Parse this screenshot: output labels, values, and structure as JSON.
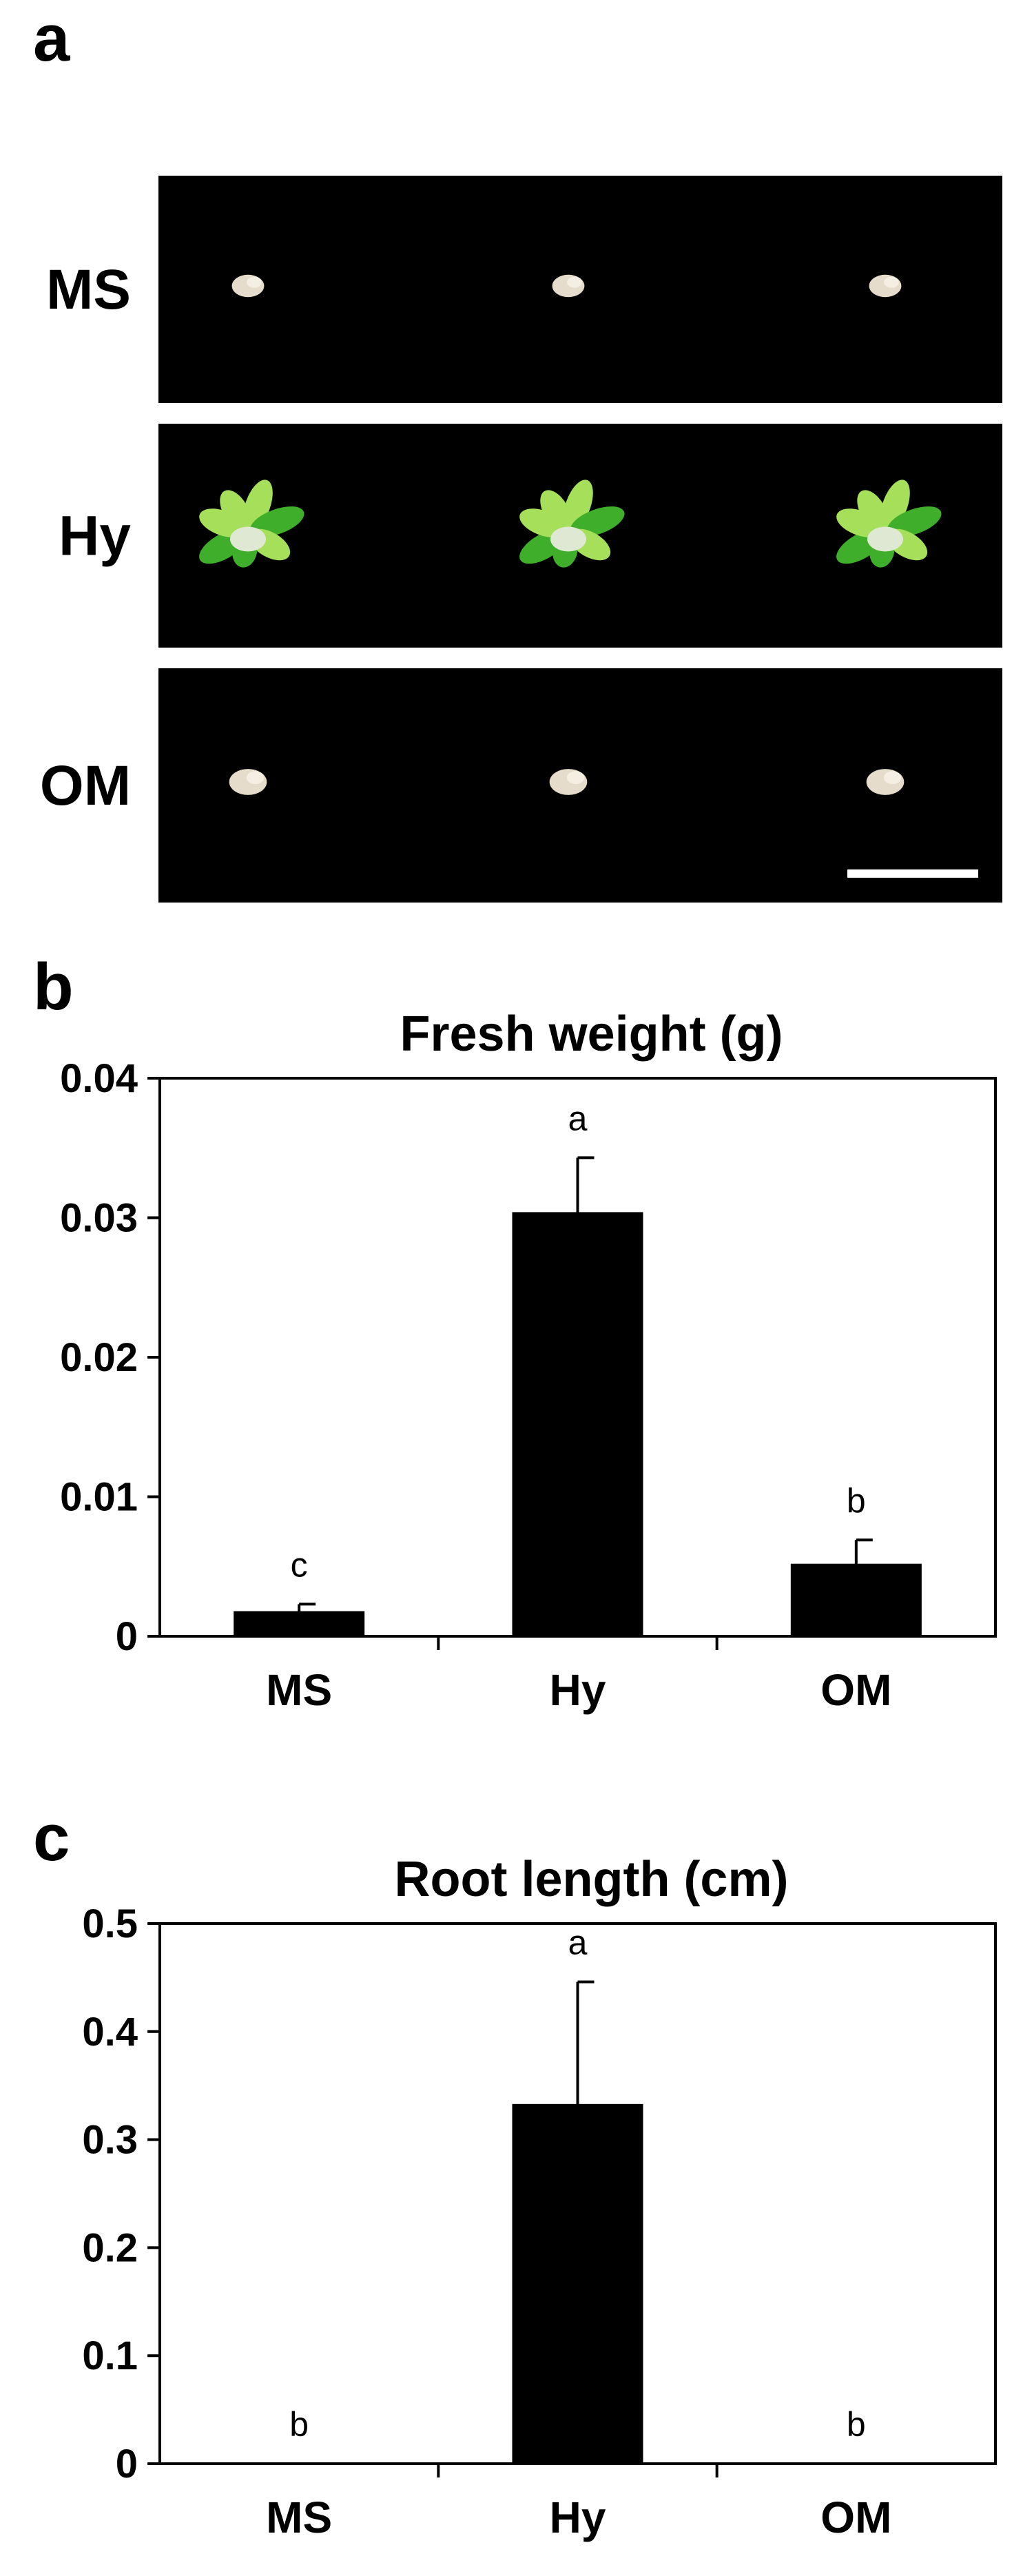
{
  "panel_a": {
    "label": "a",
    "rows": [
      {
        "label": "MS",
        "sample": "callus"
      },
      {
        "label": "Hy",
        "sample": "shoot"
      },
      {
        "label": "OM",
        "sample": "callus"
      }
    ]
  },
  "colors": {
    "bar": "#000000",
    "photo_bg": "#000000",
    "shoot_green": "#3fae2a",
    "shoot_light": "#a6e05a",
    "callus": "#e6dccc",
    "scale_bar": "#ffffff"
  },
  "chart_data": [
    {
      "panel": "b",
      "type": "bar",
      "title": "Fresh weight (g)",
      "xlabel": "",
      "ylabel": "",
      "categories": [
        "MS",
        "Hy",
        "OM"
      ],
      "values": [
        0.0018,
        0.0304,
        0.0052
      ],
      "errors": [
        0.0005,
        0.0039,
        0.0017
      ],
      "significance": [
        "c",
        "a",
        "b"
      ],
      "ylim": [
        0,
        0.04
      ],
      "yticks": [
        0,
        0.01,
        0.02,
        0.03,
        0.04
      ],
      "ytick_labels": [
        "0",
        "0.01",
        "0.02",
        "0.03",
        "0.04"
      ],
      "grid": false,
      "legend": "none"
    },
    {
      "panel": "c",
      "type": "bar",
      "title": "Root length (cm)",
      "xlabel": "",
      "ylabel": "",
      "categories": [
        "MS",
        "Hy",
        "OM"
      ],
      "values": [
        0,
        0.333,
        0
      ],
      "errors": [
        0,
        0.113,
        0
      ],
      "significance": [
        "b",
        "a",
        "b"
      ],
      "ylim": [
        0,
        0.5
      ],
      "yticks": [
        0,
        0.1,
        0.2,
        0.3,
        0.4,
        0.5
      ],
      "ytick_labels": [
        "0",
        "0.1",
        "0.2",
        "0.3",
        "0.4",
        "0.5"
      ],
      "grid": false,
      "legend": "none"
    }
  ]
}
